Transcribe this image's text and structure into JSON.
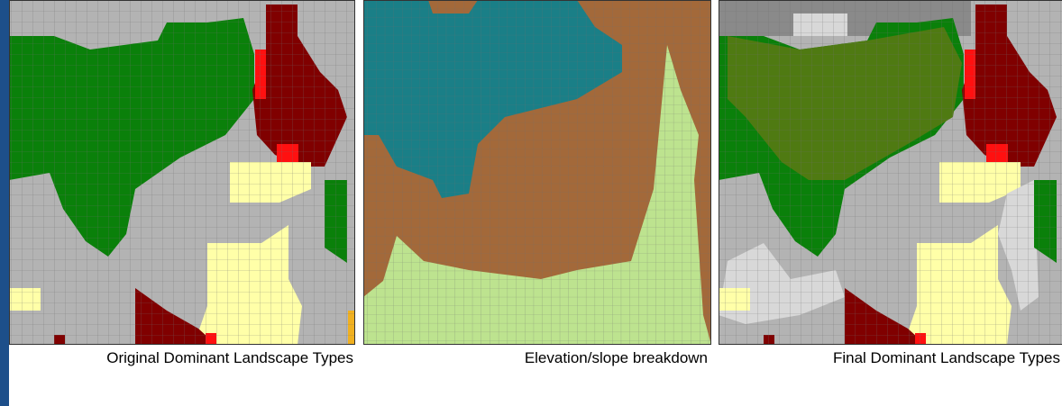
{
  "panels": [
    {
      "caption": "Original Dominant Landscape Types"
    },
    {
      "caption": "Elevation/slope breakdown"
    },
    {
      "caption": "Final Dominant Landscape Types"
    }
  ]
}
